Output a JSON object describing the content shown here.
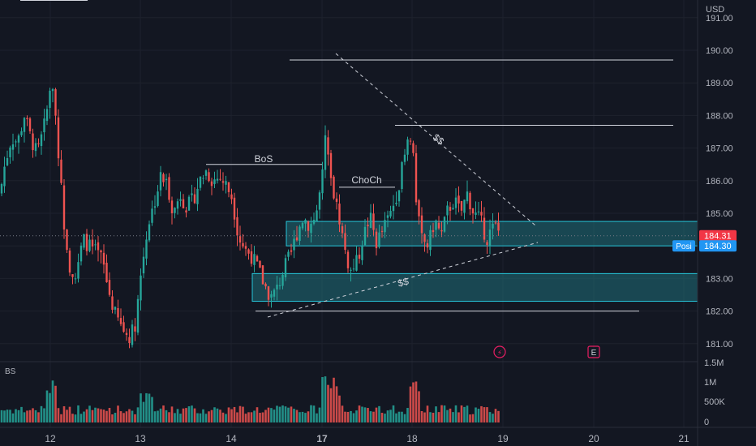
{
  "chart_data": {
    "type": "candlestick",
    "currency": "USD",
    "current_price": "184.31",
    "position_label": "Posi",
    "position_price": "184.30",
    "volume_label": "BS",
    "y_ticks": [
      "191.00",
      "190.00",
      "189.00",
      "188.00",
      "187.00",
      "186.00",
      "185.00",
      "184.00",
      "183.00",
      "182.00",
      "181.00"
    ],
    "volume_ticks": [
      "1.5M",
      "1M",
      "500K",
      "0"
    ],
    "x_ticks": [
      "12",
      "13",
      "14",
      "17",
      "18",
      "19",
      "20",
      "21"
    ],
    "bold_x_tick": "17",
    "event_icons": [
      {
        "name": "dividend-icon",
        "symbol": "⚡",
        "color": "#e91e63"
      },
      {
        "name": "earnings-icon",
        "symbol": "E",
        "color": "#e91e63"
      }
    ],
    "annotations": [
      {
        "label": "BoS"
      },
      {
        "label": "ChoCh"
      },
      {
        "label": "$$",
        "kind": "upper-trendline-liquidity"
      },
      {
        "label": "$$",
        "kind": "lower-trendline-liquidity"
      }
    ],
    "levels": {
      "high_line": 189.7,
      "swing_high_line": 187.7,
      "bos_level": 186.5,
      "choch_level": 185.8,
      "low_line": 182.0
    },
    "zones": [
      {
        "top": 184.75,
        "bottom": 184.0,
        "color": "#26c6da"
      },
      {
        "top": 183.15,
        "bottom": 182.3,
        "color": "#26c6da"
      }
    ],
    "colors": {
      "up": "#26a69a",
      "down": "#ef5350",
      "up_volume": "#26a69a",
      "down_volume": "#ef5350",
      "background": "#131722",
      "grid": "#1e222d",
      "text": "#b2b5be",
      "price_badge": "#f23645",
      "position_badge": "#2196f3",
      "zone_fill": "#1f6f7a",
      "zone_border": "#26c6da"
    }
  }
}
